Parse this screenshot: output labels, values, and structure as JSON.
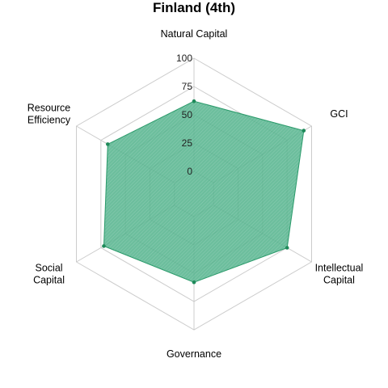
{
  "chart_data": {
    "type": "radar",
    "title": "Finland (4th)",
    "axes": [
      [
        "Natural Capital"
      ],
      [
        "GCI"
      ],
      [
        "Intellectual",
        "Capital"
      ],
      [
        "Governance"
      ],
      [
        "Social",
        "Capital"
      ],
      [
        "Resource",
        "Efficiency"
      ]
    ],
    "values": [
      62,
      92,
      75,
      58,
      72,
      68
    ],
    "rlim": [
      0,
      100
    ],
    "ticks": [
      "0",
      "25",
      "50",
      "75",
      "100"
    ],
    "grid": true,
    "colors": {
      "fill": "#52b38c",
      "stroke": "#2a9a6a",
      "point": "#1f8a5a",
      "grid": "#cccccc"
    }
  }
}
